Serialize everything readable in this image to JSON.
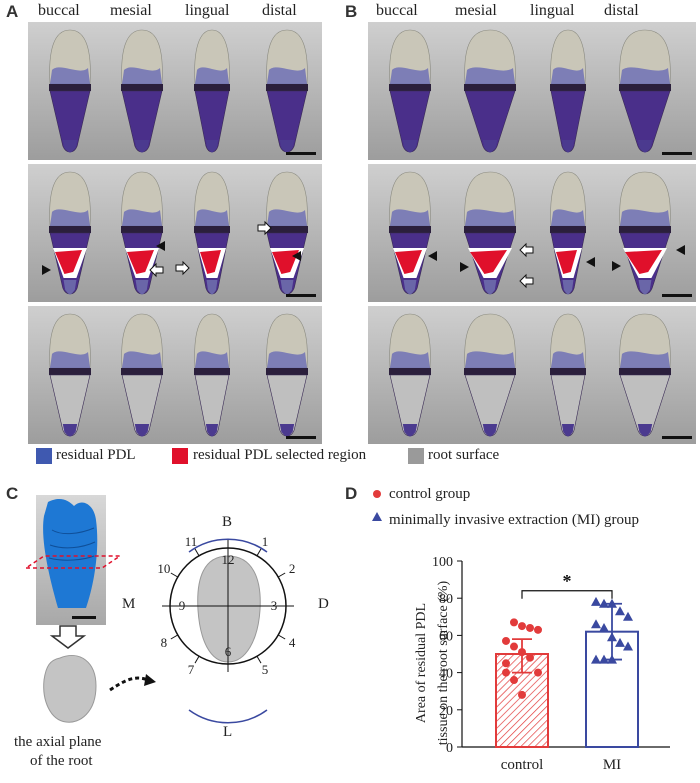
{
  "panels": {
    "a": "A",
    "b": "B",
    "c": "C",
    "d": "D"
  },
  "columns": [
    "buccal",
    "mesial",
    "lingual",
    "distal"
  ],
  "legend": [
    {
      "label": "residual PDL",
      "color": "#3f59b0"
    },
    {
      "label": "residual PDL selected region",
      "color": "#e0102b"
    },
    {
      "label": "root surface",
      "color": "#9a9a9a"
    }
  ],
  "colors": {
    "pdl": "#4a2f8a",
    "red": "#e0102b",
    "crown": "#c9c6b8",
    "silver": "#bfbfbf",
    "blue_model": "#1e78d4",
    "control": "#e23b3b",
    "mi": "#3a49a0"
  },
  "panel_c": {
    "directions": {
      "buccal": "B",
      "lingual": "L",
      "mesial": "M",
      "distal": "D"
    },
    "clock": [
      "12",
      "1",
      "2",
      "3",
      "4",
      "5",
      "6",
      "7",
      "8",
      "9",
      "10",
      "11"
    ],
    "caption_line1": "the axial plane",
    "caption_line2": "of the root"
  },
  "panel_d": {
    "legend": [
      {
        "label": "control group",
        "marker": "circle"
      },
      {
        "label": "minimally invasive extraction (MI) group",
        "marker": "triangle"
      }
    ],
    "significance": "*"
  },
  "chart_data": {
    "type": "bar",
    "categories": [
      "control",
      "MI"
    ],
    "values": [
      50,
      62
    ],
    "error": [
      [
        40,
        58
      ],
      [
        47,
        77
      ]
    ],
    "points": {
      "control": [
        40,
        67,
        65,
        64,
        63,
        57,
        54,
        51,
        48,
        40,
        45,
        36,
        28
      ],
      "MI": [
        78,
        77,
        77,
        73,
        70,
        66,
        64,
        59,
        56,
        54,
        47,
        47,
        47
      ]
    },
    "ylabel_line1": "Area of residual PDL",
    "ylabel_line2": "tissue on the root surface (%)",
    "ylim": [
      0,
      100
    ],
    "yticks": [
      "0",
      "20",
      "40",
      "60",
      "80",
      "100"
    ]
  }
}
